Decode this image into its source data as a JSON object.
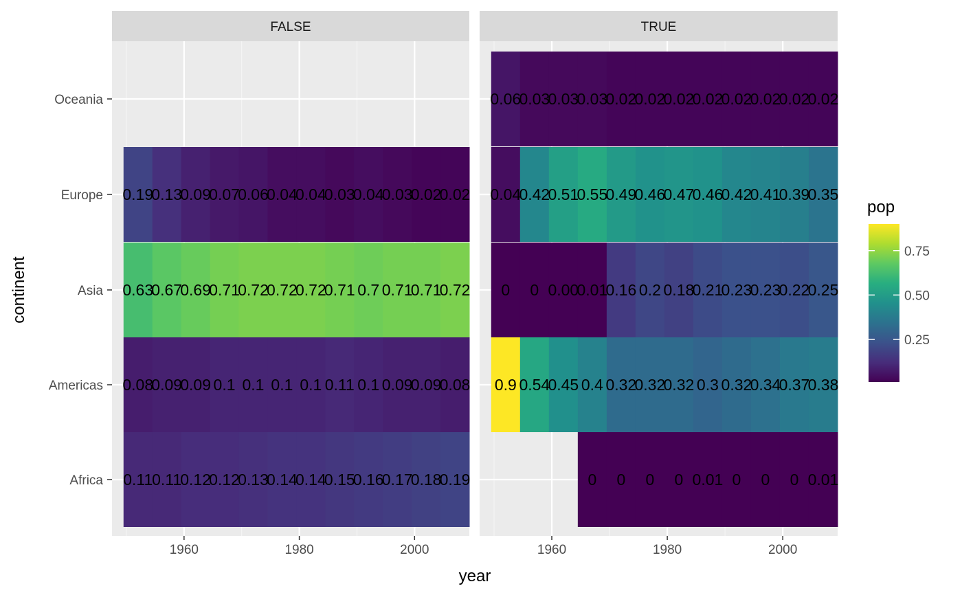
{
  "chart_data": {
    "type": "heatmap",
    "xlabel": "year",
    "ylabel": "continent",
    "x_ticks": [
      "1960",
      "1980",
      "2000"
    ],
    "x_tick_values": [
      1960,
      1980,
      2000
    ],
    "xlim": [
      1947.5,
      2009.5
    ],
    "years": [
      1952,
      1957,
      1962,
      1967,
      1972,
      1977,
      1982,
      1987,
      1992,
      1997,
      2002,
      2007
    ],
    "continents": [
      "Africa",
      "Americas",
      "Asia",
      "Europe",
      "Oceania"
    ],
    "legend": {
      "title": "pop",
      "ticks": [
        "0.25",
        "0.50",
        "0.75"
      ],
      "tick_values": [
        0.25,
        0.5,
        0.75
      ],
      "min": 0.01,
      "max": 0.9,
      "colors": [
        "#440154",
        "#472d7b",
        "#3b528b",
        "#2c728e",
        "#21918c",
        "#28ae80",
        "#5ec962",
        "#addc30",
        "#fde725"
      ]
    },
    "panels": [
      {
        "name": "FALSE",
        "rows": [
          {
            "continent": "Africa",
            "labels": [
              "0.11",
              "0.11",
              "0.12",
              "0.12",
              "0.13",
              "0.14",
              "0.14",
              "0.15",
              "0.16",
              "0.17",
              "0.18",
              "0.19"
            ]
          },
          {
            "continent": "Americas",
            "labels": [
              "0.08",
              "0.09",
              "0.09",
              "0.1",
              "0.1",
              "0.1",
              "0.1",
              "0.11",
              "0.1",
              "0.09",
              "0.09",
              "0.08"
            ]
          },
          {
            "continent": "Asia",
            "labels": [
              "0.63",
              "0.67",
              "0.69",
              "0.71",
              "0.72",
              "0.72",
              "0.72",
              "0.71",
              "0.7",
              "0.71",
              "0.71",
              "0.72"
            ]
          },
          {
            "continent": "Europe",
            "labels": [
              "0.19",
              "0.13",
              "0.09",
              "0.07",
              "0.06",
              "0.04",
              "0.04",
              "0.03",
              "0.04",
              "0.03",
              "0.02",
              "0.02"
            ]
          }
        ]
      },
      {
        "name": "TRUE",
        "rows": [
          {
            "continent": "Africa",
            "start_index": 3,
            "labels": [
              "0",
              "0",
              "0",
              "0",
              "0.01",
              "0",
              "0",
              "0",
              "0.01"
            ]
          },
          {
            "continent": "Americas",
            "labels": [
              "0.9",
              "0.54",
              "0.45",
              "0.4",
              "0.32",
              "0.32",
              "0.32",
              "0.3",
              "0.32",
              "0.34",
              "0.37",
              "0.38"
            ]
          },
          {
            "continent": "Asia",
            "labels": [
              "0",
              "0",
              "0.00",
              "0.01",
              "0.16",
              "0.2",
              "0.18",
              "0.21",
              "0.23",
              "0.23",
              "0.22",
              "0.25"
            ]
          },
          {
            "continent": "Europe",
            "labels": [
              "0.04",
              "0.42",
              "0.51",
              "0.55",
              "0.49",
              "0.46",
              "0.47",
              "0.46",
              "0.42",
              "0.41",
              "0.39",
              "0.35"
            ]
          },
          {
            "continent": "Oceania",
            "labels": [
              "0.06",
              "0.03",
              "0.03",
              "0.03",
              "0.02",
              "0.02",
              "0.02",
              "0.02",
              "0.02",
              "0.02",
              "0.02",
              "0.02"
            ]
          }
        ]
      }
    ]
  }
}
